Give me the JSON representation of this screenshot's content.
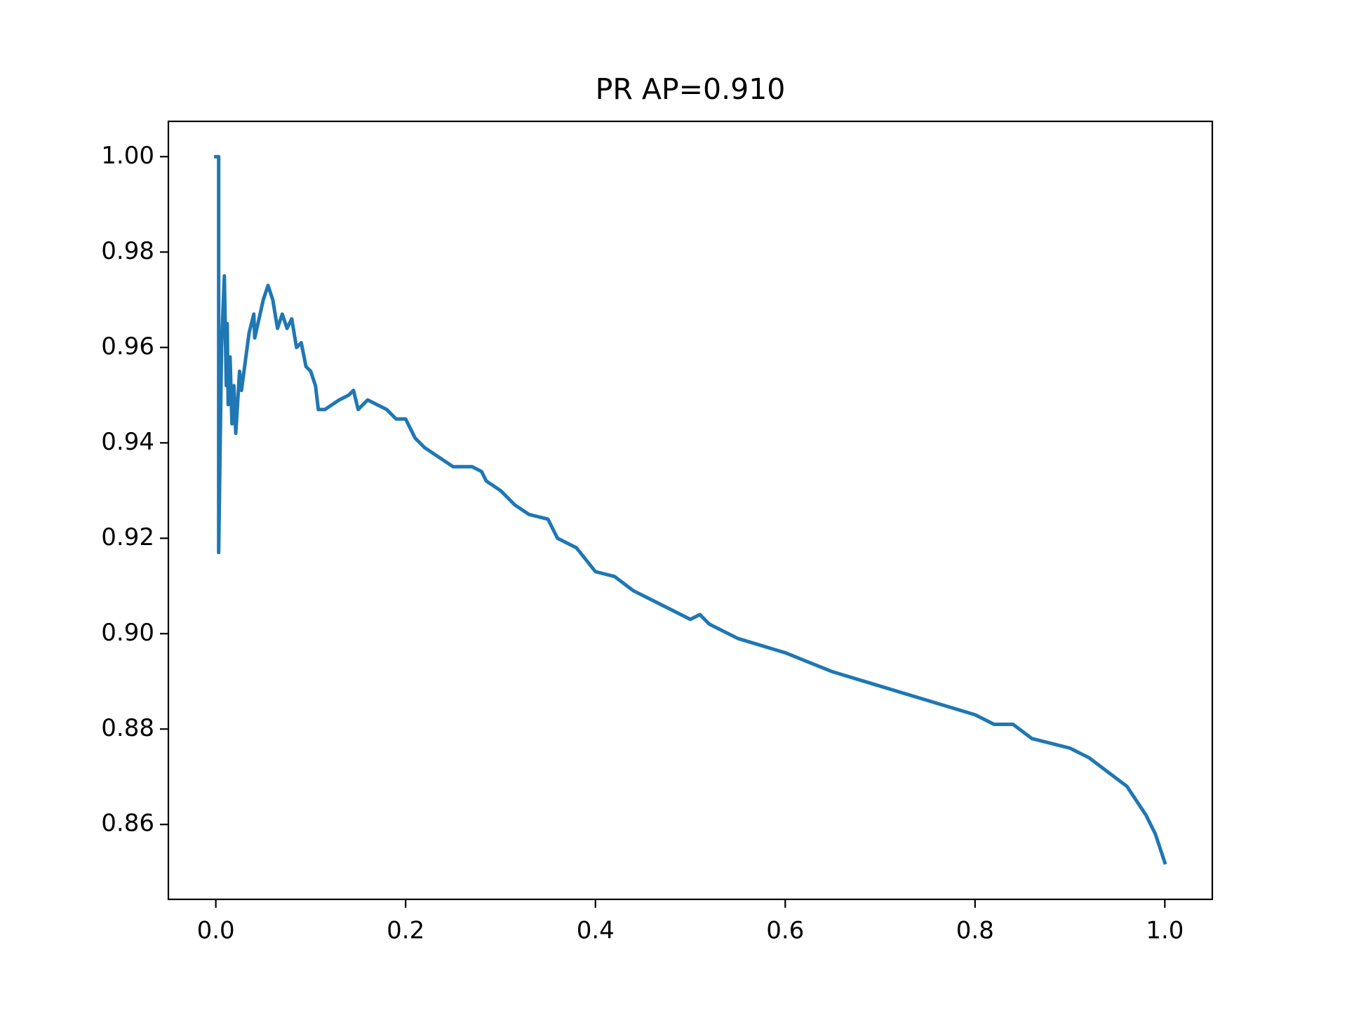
{
  "chart_data": {
    "type": "line",
    "title": "PR AP=0.910",
    "x": [
      0,
      0.003,
      0.003,
      0.006,
      0.009,
      0.011,
      0.012,
      0.013,
      0.015,
      0.017,
      0.019,
      0.021,
      0.025,
      0.027,
      0.035,
      0.04,
      0.041,
      0.05,
      0.055,
      0.06,
      0.065,
      0.07,
      0.075,
      0.08,
      0.085,
      0.09,
      0.095,
      0.1,
      0.105,
      0.108,
      0.115,
      0.13,
      0.14,
      0.145,
      0.15,
      0.16,
      0.18,
      0.19,
      0.2,
      0.21,
      0.22,
      0.235,
      0.25,
      0.27,
      0.28,
      0.285,
      0.3,
      0.315,
      0.33,
      0.35,
      0.36,
      0.38,
      0.4,
      0.42,
      0.44,
      0.46,
      0.48,
      0.5,
      0.51,
      0.52,
      0.55,
      0.6,
      0.65,
      0.7,
      0.75,
      0.8,
      0.82,
      0.84,
      0.86,
      0.9,
      0.92,
      0.94,
      0.96,
      0.97,
      0.98,
      0.99,
      1.0
    ],
    "series": [
      {
        "color": "#1f77b4",
        "values": [
          1.0,
          1.0,
          0.917,
          0.96,
          0.975,
          0.952,
          0.965,
          0.948,
          0.958,
          0.944,
          0.952,
          0.942,
          0.955,
          0.951,
          0.963,
          0.967,
          0.962,
          0.97,
          0.973,
          0.97,
          0.964,
          0.967,
          0.964,
          0.966,
          0.96,
          0.961,
          0.956,
          0.955,
          0.952,
          0.947,
          0.947,
          0.949,
          0.95,
          0.951,
          0.947,
          0.949,
          0.947,
          0.945,
          0.945,
          0.941,
          0.939,
          0.937,
          0.935,
          0.935,
          0.934,
          0.932,
          0.93,
          0.927,
          0.925,
          0.924,
          0.92,
          0.918,
          0.913,
          0.912,
          0.909,
          0.907,
          0.905,
          0.903,
          0.904,
          0.902,
          0.899,
          0.896,
          0.892,
          0.889,
          0.886,
          0.883,
          0.881,
          0.881,
          0.878,
          0.876,
          0.874,
          0.871,
          0.868,
          0.865,
          0.862,
          0.858,
          0.852
        ]
      }
    ],
    "xlim": [
      -0.05,
      1.05
    ],
    "xticks": [
      {
        "value": 0,
        "label": "0.0"
      },
      0.2,
      0.4,
      0.6,
      0.8,
      {
        "value": 1,
        "label": "1.0"
      }
    ],
    "ylim": [
      0.8443,
      1.0074
    ],
    "yticks": [
      0.86,
      0.88,
      {
        "value": 0.9,
        "label": "0.90"
      },
      0.92,
      0.94,
      0.96,
      0.98,
      {
        "value": 1,
        "label": "1.00"
      }
    ],
    "grid": false
  }
}
